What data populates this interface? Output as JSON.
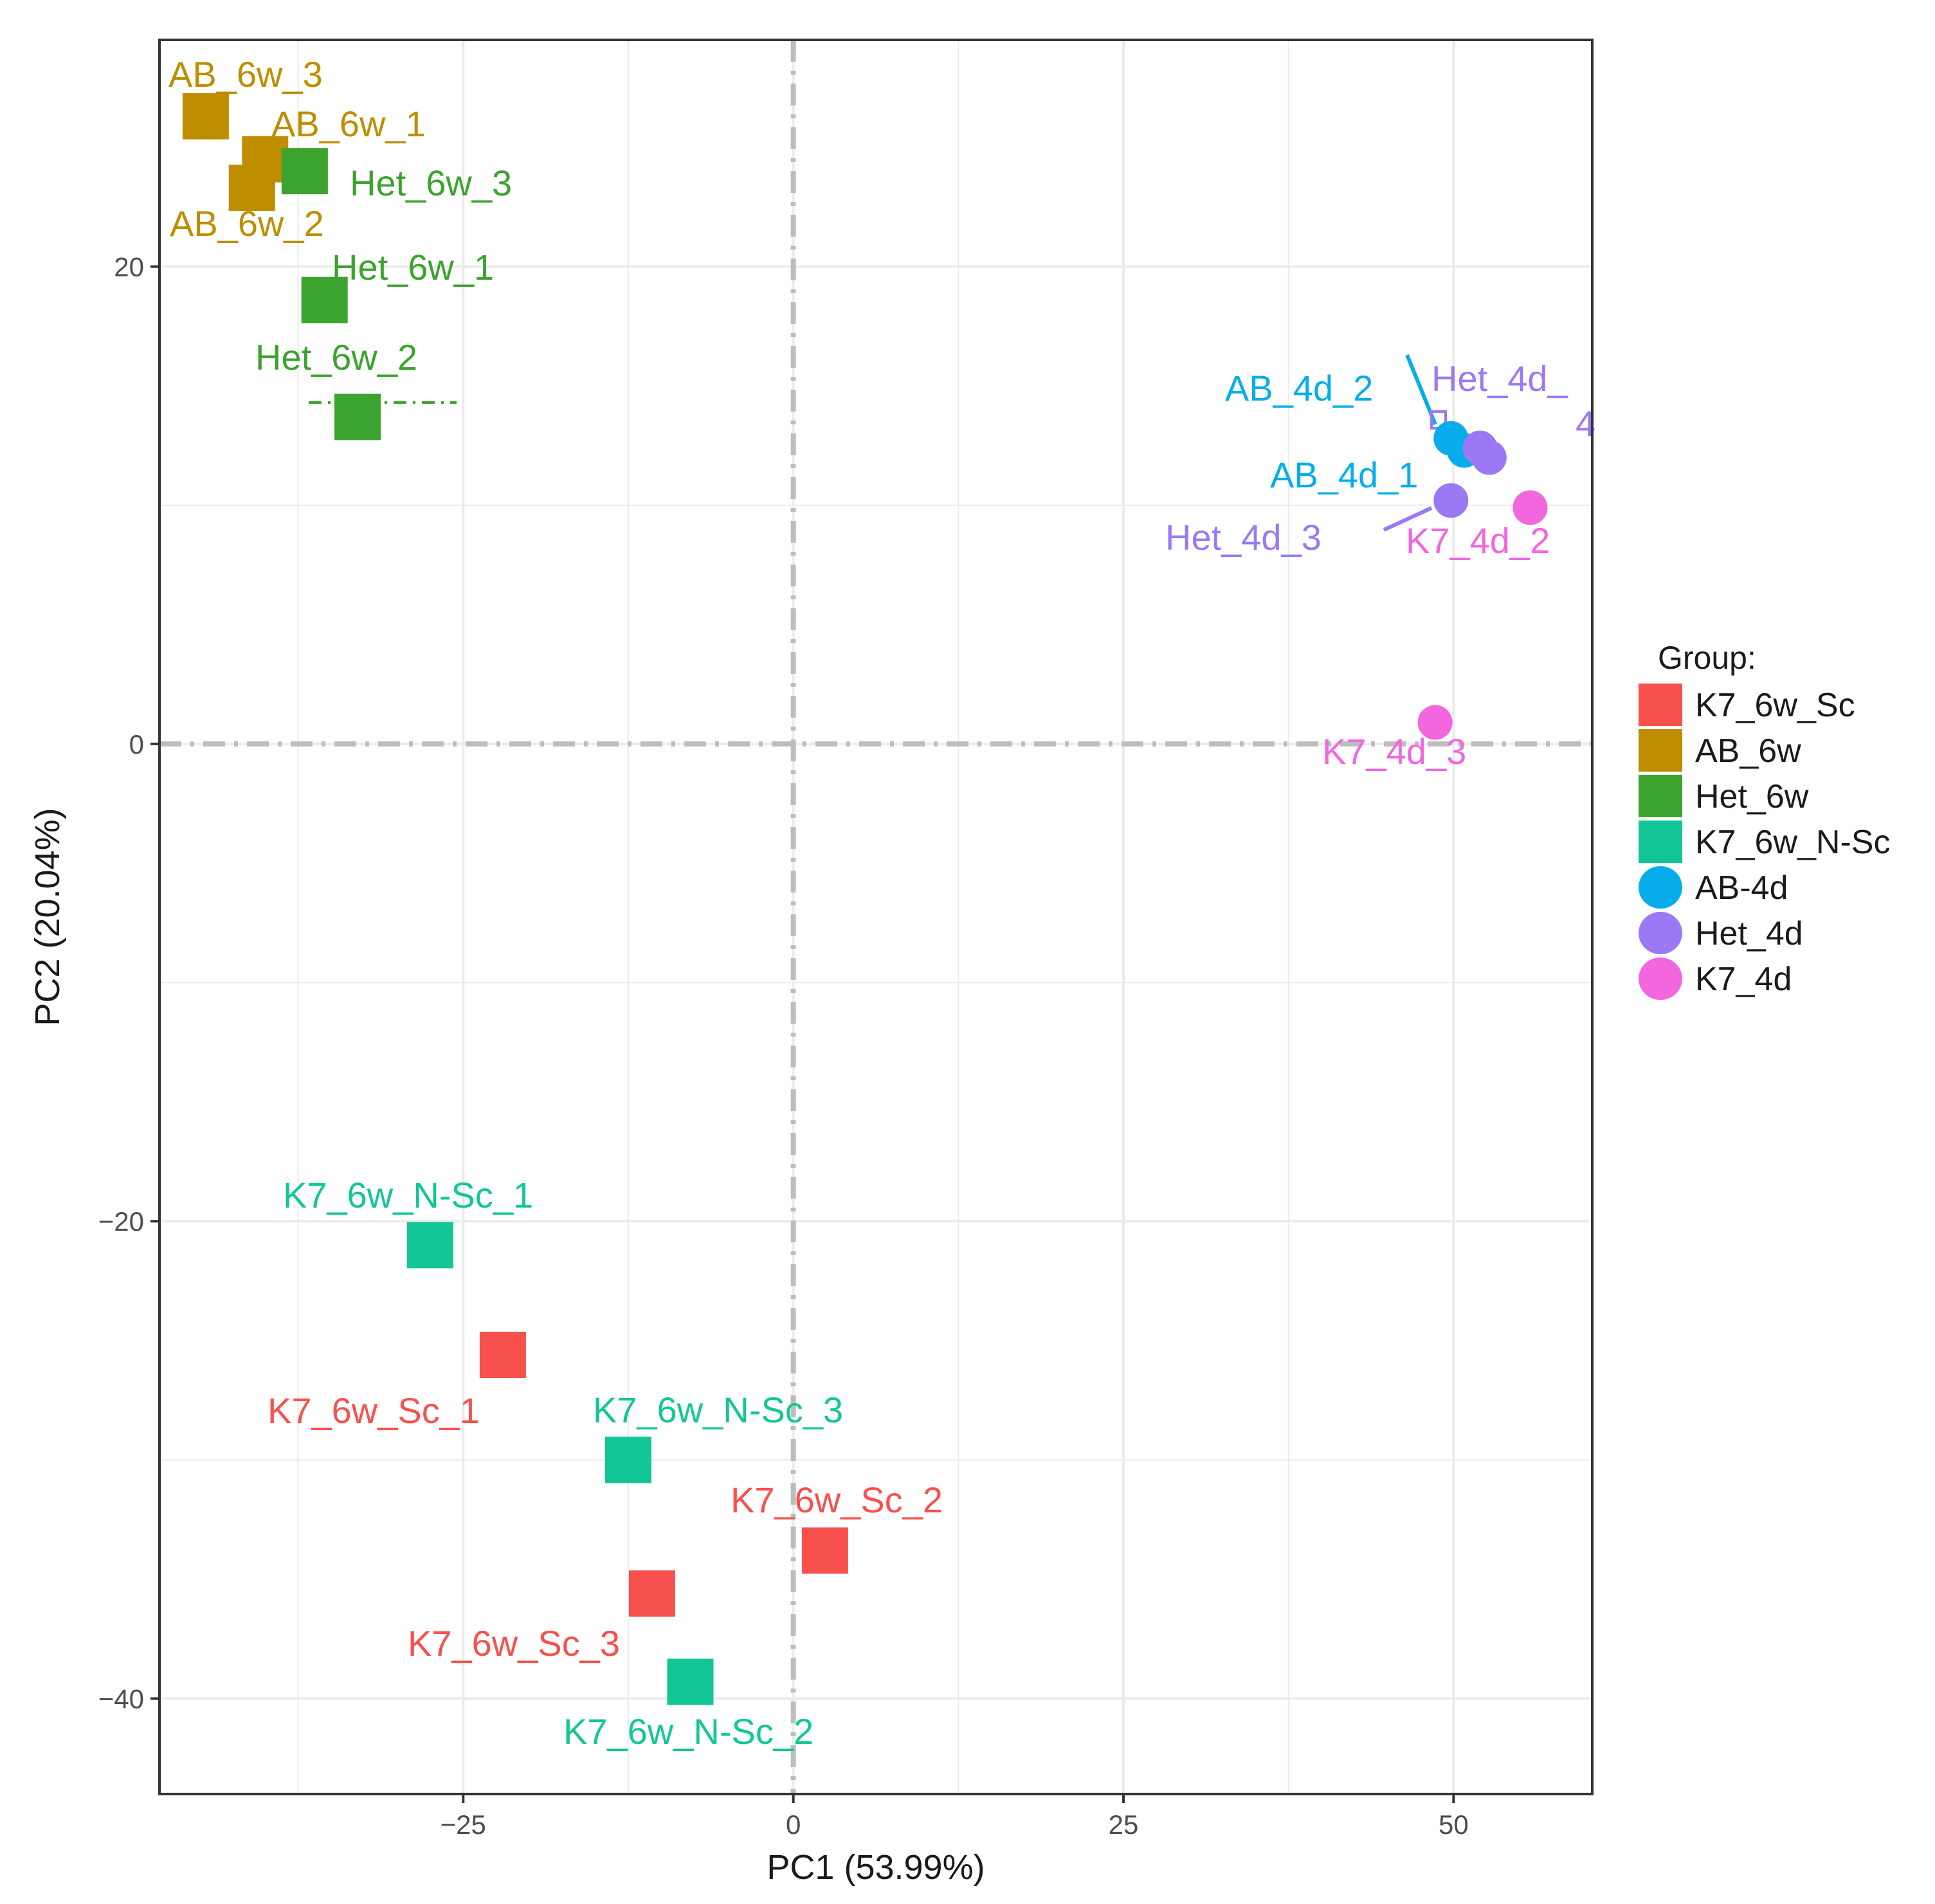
{
  "chart_data": {
    "type": "scatter",
    "title": "",
    "xlabel": "PC1 (53.99%)",
    "ylabel": "PC2 (20.04%)",
    "xlim": [
      -48,
      60.5
    ],
    "ylim": [
      -44,
      29.5
    ],
    "x_ticks": [
      -25,
      0,
      25,
      50
    ],
    "y_ticks": [
      -40,
      -20,
      0,
      20
    ],
    "grid": true,
    "reference_lines": {
      "x": 0,
      "y": 0
    },
    "legend_position": "right",
    "legend_title": "Group:",
    "groups": [
      {
        "name": "K7_6w_Sc",
        "color": "#F8504C",
        "shape": "square"
      },
      {
        "name": "AB_6w",
        "color": "#BE8E00",
        "shape": "square"
      },
      {
        "name": "Het_6w",
        "color": "#3BA32E",
        "shape": "square"
      },
      {
        "name": "K7_6w_N-Sc",
        "color": "#12C795",
        "shape": "square"
      },
      {
        "name": "AB-4d",
        "color": "#07ADEA",
        "shape": "circle"
      },
      {
        "name": "Het_4d",
        "color": "#9C79F4",
        "shape": "circle"
      },
      {
        "name": "K7_4d",
        "color": "#F266DE",
        "shape": "circle"
      }
    ],
    "points": [
      {
        "label": "AB_6w_3",
        "group": "AB_6w",
        "x": -44.5,
        "y": 26.3
      },
      {
        "label": "AB_6w_1",
        "group": "AB_6w",
        "x": -40.0,
        "y": 24.5
      },
      {
        "label": "AB_6w_2",
        "group": "AB_6w",
        "x": -41.0,
        "y": 23.3
      },
      {
        "label": "Het_6w_3",
        "group": "Het_6w",
        "x": -37.0,
        "y": 24.0
      },
      {
        "label": "Het_6w_1",
        "group": "Het_6w",
        "x": -35.5,
        "y": 18.6
      },
      {
        "label": "Het_6w_2",
        "group": "Het_6w",
        "x": -33.0,
        "y": 13.7
      },
      {
        "label": "AB_4d_2",
        "group": "AB-4d",
        "x": 49.8,
        "y": 12.8
      },
      {
        "label": "AB_4d_1",
        "group": "AB-4d",
        "x": 50.8,
        "y": 12.3
      },
      {
        "label": "Het_4d_4",
        "group": "Het_4d",
        "x": 52.0,
        "y": 12.4
      },
      {
        "label": "Het_4d_3",
        "group": "Het_4d",
        "x": 49.8,
        "y": 10.2
      },
      {
        "label": "",
        "group": "Het_4d",
        "x": 52.7,
        "y": 12.0
      },
      {
        "label": "K7_4d_2",
        "group": "K7_4d",
        "x": 55.8,
        "y": 9.9
      },
      {
        "label": "K7_4d_3",
        "group": "K7_4d",
        "x": 48.6,
        "y": 0.9
      },
      {
        "label": "K7_6w_N-Sc_1",
        "group": "K7_6w_N-Sc",
        "x": -27.5,
        "y": -21.0
      },
      {
        "label": "K7_6w_N-Sc_3",
        "group": "K7_6w_N-Sc",
        "x": -12.5,
        "y": -30.0
      },
      {
        "label": "K7_6w_N-Sc_2",
        "group": "K7_6w_N-Sc",
        "x": -7.8,
        "y": -39.3
      },
      {
        "label": "K7_6w_Sc_1",
        "group": "K7_6w_Sc",
        "x": -22.0,
        "y": -25.6
      },
      {
        "label": "K7_6w_Sc_2",
        "group": "K7_6w_Sc",
        "x": 2.4,
        "y": -33.8
      },
      {
        "label": "K7_6w_Sc_3",
        "group": "K7_6w_Sc",
        "x": -10.7,
        "y": -35.6
      }
    ]
  }
}
